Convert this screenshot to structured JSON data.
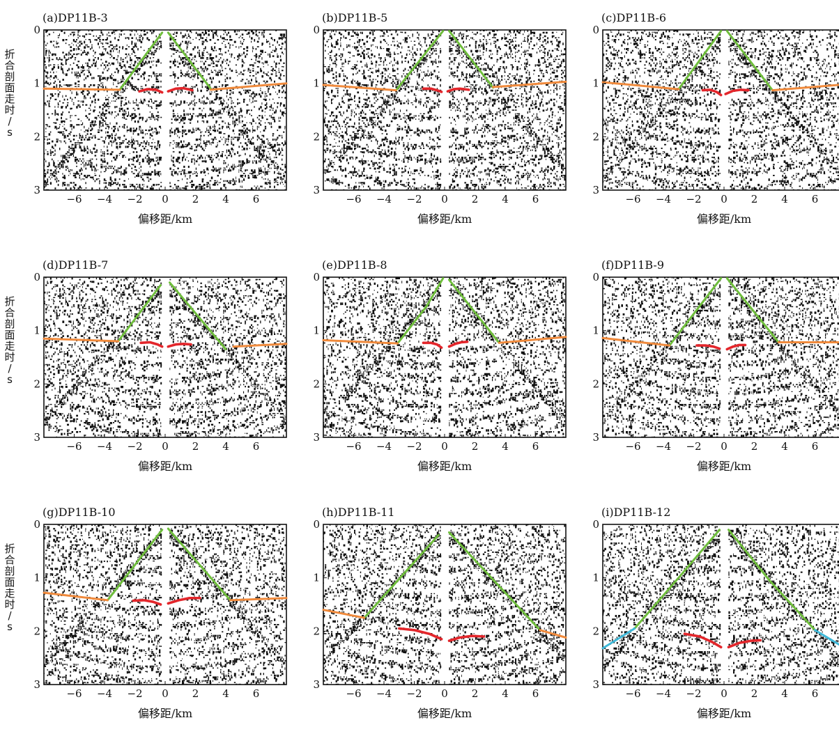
{
  "figure": {
    "y_axis_title": "折合剖面走时/s",
    "x_axis_title": "偏移距/km",
    "colors": {
      "direct_wave": "#6fbe3c",
      "refraction": "#f08a3c",
      "reflection": "#e3262b",
      "deep_refraction": "#3fb8d8",
      "trace_ink": "#111111"
    }
  },
  "chart_data": [
    {
      "id": "a",
      "title": "(a)DP11B-3",
      "type": "line",
      "xlim": [
        -8,
        8
      ],
      "ylim": [
        0,
        3
      ],
      "y_inverted": true,
      "x_ticks": [
        -6,
        -4,
        -2,
        0,
        2,
        4,
        6
      ],
      "y_ticks": [
        0,
        1,
        2,
        3
      ],
      "xlabel": "偏移距/km",
      "ylabel": "折合剖面走时/s",
      "series": [
        {
          "kind": "direct_wave",
          "x": [
            -3.0,
            -0.2
          ],
          "y": [
            1.12,
            0.05
          ]
        },
        {
          "kind": "direct_wave",
          "x": [
            0.2,
            3.0
          ],
          "y": [
            0.05,
            1.1
          ]
        },
        {
          "kind": "refraction",
          "x": [
            -8,
            -3.0
          ],
          "y": [
            1.1,
            1.12
          ]
        },
        {
          "kind": "refraction",
          "x": [
            3.0,
            8
          ],
          "y": [
            1.12,
            1.0
          ]
        },
        {
          "kind": "reflection",
          "x": [
            -1.7,
            -1.2,
            -0.6,
            -0.2
          ],
          "y": [
            1.15,
            1.11,
            1.12,
            1.17
          ]
        },
        {
          "kind": "reflection",
          "x": [
            0.2,
            0.7,
            1.2,
            1.8
          ],
          "y": [
            1.15,
            1.1,
            1.09,
            1.13
          ]
        }
      ]
    },
    {
      "id": "b",
      "title": "(b)DP11B-5",
      "type": "line",
      "xlim": [
        -8,
        8
      ],
      "ylim": [
        0,
        3
      ],
      "y_inverted": true,
      "x_ticks": [
        -6,
        -4,
        -2,
        0,
        2,
        4,
        6
      ],
      "y_ticks": [
        0,
        1,
        2,
        3
      ],
      "xlabel": "偏移距/km",
      "ylabel": "折合剖面走时/s",
      "series": [
        {
          "kind": "direct_wave",
          "x": [
            -3.2,
            -0.1
          ],
          "y": [
            1.13,
            0.02
          ]
        },
        {
          "kind": "direct_wave",
          "x": [
            0.3,
            3.2
          ],
          "y": [
            0.02,
            1.08
          ]
        },
        {
          "kind": "refraction",
          "x": [
            -8,
            -3.2
          ],
          "y": [
            1.03,
            1.13
          ]
        },
        {
          "kind": "refraction",
          "x": [
            3.2,
            8
          ],
          "y": [
            1.07,
            0.97
          ]
        },
        {
          "kind": "reflection",
          "x": [
            -1.4,
            -0.9,
            -0.5,
            -0.2
          ],
          "y": [
            1.1,
            1.1,
            1.13,
            1.16
          ]
        },
        {
          "kind": "reflection",
          "x": [
            0.2,
            0.6,
            1.0,
            1.6
          ],
          "y": [
            1.15,
            1.11,
            1.1,
            1.12
          ]
        }
      ]
    },
    {
      "id": "c",
      "title": "(c)DP11B-6",
      "type": "line",
      "xlim": [
        -8,
        8
      ],
      "ylim": [
        0,
        3
      ],
      "y_inverted": true,
      "x_ticks": [
        -6,
        -4,
        -2,
        0,
        2,
        4,
        6
      ],
      "y_ticks": [
        0,
        1,
        2,
        3
      ],
      "xlabel": "偏移距/km",
      "ylabel": "折合剖面走时/s",
      "series": [
        {
          "kind": "direct_wave",
          "x": [
            -3.0,
            -0.2
          ],
          "y": [
            1.11,
            0.02
          ]
        },
        {
          "kind": "direct_wave",
          "x": [
            0.2,
            3.2
          ],
          "y": [
            0.02,
            1.13
          ]
        },
        {
          "kind": "refraction",
          "x": [
            -8,
            -3.0
          ],
          "y": [
            0.98,
            1.11
          ]
        },
        {
          "kind": "refraction",
          "x": [
            3.2,
            8
          ],
          "y": [
            1.13,
            1.02
          ]
        },
        {
          "kind": "reflection",
          "x": [
            -1.4,
            -0.9,
            -0.5,
            -0.2
          ],
          "y": [
            1.13,
            1.12,
            1.16,
            1.22
          ]
        },
        {
          "kind": "reflection",
          "x": [
            0.1,
            0.6,
            1.1,
            1.6
          ],
          "y": [
            1.2,
            1.14,
            1.12,
            1.13
          ]
        }
      ]
    },
    {
      "id": "d",
      "title": "(d)DP11B-7",
      "type": "line",
      "xlim": [
        -8,
        8
      ],
      "ylim": [
        0,
        3
      ],
      "y_inverted": true,
      "x_ticks": [
        -6,
        -4,
        -2,
        0,
        2,
        4,
        6
      ],
      "y_ticks": [
        0,
        1,
        2,
        3
      ],
      "xlabel": "偏移距/km",
      "ylabel": "折合剖面走时/s",
      "series": [
        {
          "kind": "direct_wave",
          "x": [
            -3.1,
            -0.3
          ],
          "y": [
            1.2,
            0.15
          ]
        },
        {
          "kind": "direct_wave",
          "x": [
            0.3,
            4.0
          ],
          "y": [
            0.1,
            1.35
          ]
        },
        {
          "kind": "refraction",
          "x": [
            -8,
            -3.1
          ],
          "y": [
            1.15,
            1.2
          ]
        },
        {
          "kind": "refraction",
          "x": [
            4.5,
            8
          ],
          "y": [
            1.3,
            1.25
          ]
        },
        {
          "kind": "reflection",
          "x": [
            -1.6,
            -1.0,
            -0.5,
            -0.2
          ],
          "y": [
            1.23,
            1.22,
            1.26,
            1.3
          ]
        },
        {
          "kind": "reflection",
          "x": [
            0.2,
            0.7,
            1.2,
            1.7
          ],
          "y": [
            1.3,
            1.26,
            1.25,
            1.26
          ]
        }
      ]
    },
    {
      "id": "e",
      "title": "(e)DP11B-8",
      "type": "line",
      "xlim": [
        -8,
        8
      ],
      "ylim": [
        0,
        3
      ],
      "y_inverted": true,
      "x_ticks": [
        -6,
        -4,
        -2,
        0,
        2,
        4,
        6
      ],
      "y_ticks": [
        0,
        1,
        2,
        3
      ],
      "xlabel": "偏移距/km",
      "ylabel": "折合剖面走时/s",
      "series": [
        {
          "kind": "direct_wave",
          "x": [
            -3.1,
            -1.2,
            -0.1
          ],
          "y": [
            1.24,
            0.55,
            0.02
          ]
        },
        {
          "kind": "direct_wave",
          "x": [
            0.3,
            3.6
          ],
          "y": [
            0.05,
            1.23
          ]
        },
        {
          "kind": "refraction",
          "x": [
            -8,
            -3.1
          ],
          "y": [
            1.18,
            1.24
          ]
        },
        {
          "kind": "refraction",
          "x": [
            3.6,
            8
          ],
          "y": [
            1.23,
            1.12
          ]
        },
        {
          "kind": "reflection",
          "x": [
            -1.4,
            -0.9,
            -0.5,
            -0.2
          ],
          "y": [
            1.23,
            1.23,
            1.26,
            1.32
          ]
        },
        {
          "kind": "reflection",
          "x": [
            0.3,
            0.7,
            1.1,
            1.5
          ],
          "y": [
            1.3,
            1.25,
            1.22,
            1.21
          ]
        }
      ]
    },
    {
      "id": "f",
      "title": "(f)DP11B-9",
      "type": "line",
      "xlim": [
        -8,
        8
      ],
      "ylim": [
        0,
        3
      ],
      "y_inverted": true,
      "x_ticks": [
        -6,
        -4,
        -2,
        0,
        2,
        4,
        6
      ],
      "y_ticks": [
        0,
        1,
        2,
        3
      ],
      "xlabel": "偏移距/km",
      "ylabel": "折合剖面走时/s",
      "series": [
        {
          "kind": "direct_wave",
          "x": [
            -3.6,
            -0.2
          ],
          "y": [
            1.28,
            0.02
          ]
        },
        {
          "kind": "direct_wave",
          "x": [
            0.2,
            3.6
          ],
          "y": [
            0.02,
            1.22
          ]
        },
        {
          "kind": "refraction",
          "x": [
            -8,
            -3.6
          ],
          "y": [
            1.14,
            1.28
          ]
        },
        {
          "kind": "refraction",
          "x": [
            3.6,
            8
          ],
          "y": [
            1.22,
            1.22
          ]
        },
        {
          "kind": "reflection",
          "x": [
            -1.8,
            -1.2,
            -0.7,
            -0.3
          ],
          "y": [
            1.28,
            1.28,
            1.3,
            1.34
          ]
        },
        {
          "kind": "reflection",
          "x": [
            0.2,
            0.6,
            1.0,
            1.4
          ],
          "y": [
            1.35,
            1.3,
            1.27,
            1.27
          ]
        }
      ]
    },
    {
      "id": "g",
      "title": "(g)DP11B-10",
      "type": "line",
      "xlim": [
        -8,
        8
      ],
      "ylim": [
        0,
        3
      ],
      "y_inverted": true,
      "x_ticks": [
        -6,
        -4,
        -2,
        0,
        2,
        4,
        6
      ],
      "y_ticks": [
        0,
        1,
        2,
        3
      ],
      "xlabel": "偏移距/km",
      "ylabel": "折合剖面走时/s",
      "series": [
        {
          "kind": "direct_wave",
          "x": [
            -3.8,
            -0.2
          ],
          "y": [
            1.42,
            0.1
          ]
        },
        {
          "kind": "direct_wave",
          "x": [
            0.2,
            4.3
          ],
          "y": [
            0.08,
            1.42
          ]
        },
        {
          "kind": "refraction",
          "x": [
            -8,
            -3.8
          ],
          "y": [
            1.28,
            1.42
          ]
        },
        {
          "kind": "refraction",
          "x": [
            4.3,
            8
          ],
          "y": [
            1.42,
            1.38
          ]
        },
        {
          "kind": "reflection",
          "x": [
            -2.1,
            -1.4,
            -0.8,
            -0.3
          ],
          "y": [
            1.43,
            1.42,
            1.45,
            1.5
          ]
        },
        {
          "kind": "reflection",
          "x": [
            0.2,
            0.9,
            1.6,
            2.3
          ],
          "y": [
            1.48,
            1.42,
            1.38,
            1.38
          ]
        }
      ]
    },
    {
      "id": "h",
      "title": "(h)DP11B-11",
      "type": "line",
      "xlim": [
        -8,
        8
      ],
      "ylim": [
        0,
        3
      ],
      "y_inverted": true,
      "x_ticks": [
        -6,
        -4,
        -2,
        0,
        2,
        4,
        6
      ],
      "y_ticks": [
        0,
        1,
        2,
        3
      ],
      "xlabel": "偏移距/km",
      "ylabel": "折合剖面走时/s",
      "series": [
        {
          "kind": "direct_wave",
          "x": [
            -5.3,
            -0.4
          ],
          "y": [
            1.75,
            0.2
          ]
        },
        {
          "kind": "direct_wave",
          "x": [
            0.3,
            6.2
          ],
          "y": [
            0.15,
            1.95
          ]
        },
        {
          "kind": "refraction",
          "x": [
            -8,
            -5.3
          ],
          "y": [
            1.6,
            1.75
          ]
        },
        {
          "kind": "refraction",
          "x": [
            6.3,
            8
          ],
          "y": [
            1.98,
            2.12
          ]
        },
        {
          "kind": "reflection",
          "x": [
            -3.0,
            -2.0,
            -1.0,
            -0.2
          ],
          "y": [
            1.95,
            1.98,
            2.05,
            2.15
          ]
        },
        {
          "kind": "reflection",
          "x": [
            0.3,
            1.0,
            1.8,
            2.6
          ],
          "y": [
            2.18,
            2.12,
            2.09,
            2.1
          ]
        }
      ]
    },
    {
      "id": "i",
      "title": "(i)DP11B-12",
      "type": "line",
      "xlim": [
        -8,
        8
      ],
      "ylim": [
        0,
        3
      ],
      "y_inverted": true,
      "x_ticks": [
        -6,
        -4,
        -2,
        0,
        2,
        4,
        6
      ],
      "y_ticks": [
        0,
        1,
        2,
        3
      ],
      "xlabel": "偏移距/km",
      "ylabel": "折合剖面走时/s",
      "series": [
        {
          "kind": "direct_wave",
          "x": [
            -5.9,
            -3.0,
            -0.3
          ],
          "y": [
            1.95,
            1.0,
            0.1
          ]
        },
        {
          "kind": "direct_wave",
          "x": [
            0.3,
            3.0,
            6.0
          ],
          "y": [
            0.1,
            1.05,
            1.98
          ]
        },
        {
          "kind": "deep_refraction",
          "x": [
            -8,
            -5.9
          ],
          "y": [
            2.32,
            1.95
          ]
        },
        {
          "kind": "deep_refraction",
          "x": [
            6.0,
            8
          ],
          "y": [
            1.98,
            2.32
          ]
        },
        {
          "kind": "reflection",
          "x": [
            -2.6,
            -1.6,
            -0.8,
            -0.2
          ],
          "y": [
            2.05,
            2.1,
            2.2,
            2.3
          ]
        },
        {
          "kind": "reflection",
          "x": [
            0.3,
            1.0,
            1.8,
            2.4
          ],
          "y": [
            2.3,
            2.22,
            2.18,
            2.17
          ]
        }
      ]
    }
  ]
}
